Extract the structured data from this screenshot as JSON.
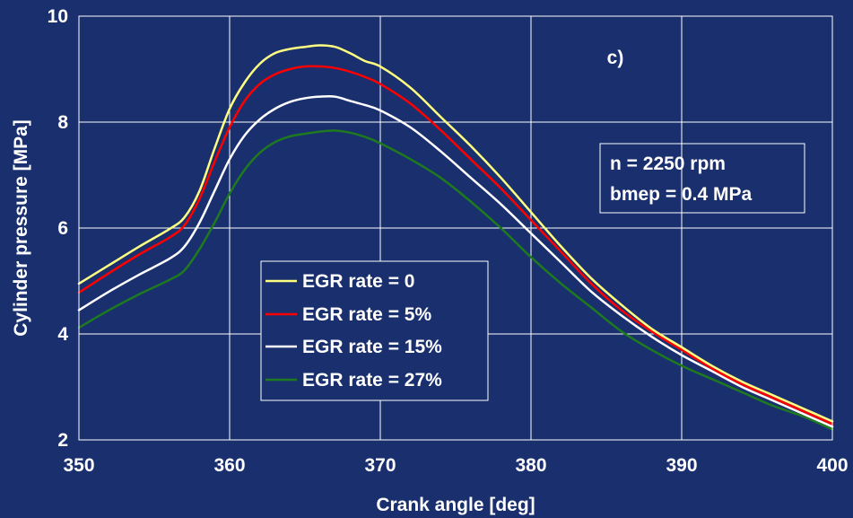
{
  "chart_data": {
    "type": "line",
    "title": "",
    "panel_label": "c)",
    "xlabel": "Crank angle [deg]",
    "ylabel": "Cylinder pressure [MPa]",
    "xlim": [
      350,
      400
    ],
    "ylim": [
      2,
      10
    ],
    "x_ticks": [
      350,
      360,
      370,
      380,
      390,
      400
    ],
    "y_ticks": [
      2,
      4,
      6,
      8,
      10
    ],
    "x_tick_labels": [
      "350",
      "360",
      "370",
      "380",
      "390",
      "400"
    ],
    "y_tick_labels": [
      "2",
      "4",
      "6",
      "8",
      "10"
    ],
    "grid": true,
    "legend_position": "center-left",
    "annotation_lines": [
      "n = 2250 rpm",
      "bmep = 0.4 MPa"
    ],
    "colors": {
      "background": "#1a2f6e",
      "grid": "#ffffff"
    },
    "series": [
      {
        "name": "EGR rate = 0",
        "color": "#ffff80",
        "x": [
          350,
          352,
          354,
          356,
          357,
          358,
          359,
          360,
          361,
          362,
          363,
          364,
          365,
          366,
          367,
          368,
          369,
          370,
          372,
          374,
          376,
          378,
          380,
          382,
          384,
          386,
          388,
          390,
          392,
          394,
          396,
          398,
          400
        ],
        "y": [
          4.95,
          5.3,
          5.65,
          5.98,
          6.2,
          6.7,
          7.5,
          8.25,
          8.75,
          9.1,
          9.3,
          9.38,
          9.42,
          9.45,
          9.42,
          9.3,
          9.15,
          9.05,
          8.65,
          8.1,
          7.55,
          6.95,
          6.3,
          5.65,
          5.05,
          4.55,
          4.1,
          3.75,
          3.4,
          3.1,
          2.85,
          2.6,
          2.35
        ]
      },
      {
        "name": "EGR rate = 5%",
        "color": "#ff0000",
        "x": [
          350,
          352,
          354,
          356,
          357,
          358,
          359,
          360,
          361,
          362,
          363,
          364,
          365,
          366,
          367,
          368,
          369,
          370,
          372,
          374,
          376,
          378,
          380,
          382,
          384,
          386,
          388,
          390,
          392,
          394,
          396,
          398,
          400
        ],
        "y": [
          4.78,
          5.15,
          5.5,
          5.82,
          6.05,
          6.55,
          7.25,
          7.9,
          8.4,
          8.72,
          8.9,
          9.0,
          9.05,
          9.05,
          9.02,
          8.95,
          8.85,
          8.72,
          8.35,
          7.85,
          7.3,
          6.75,
          6.15,
          5.55,
          4.95,
          4.45,
          4.05,
          3.7,
          3.35,
          3.05,
          2.8,
          2.55,
          2.3
        ]
      },
      {
        "name": "EGR rate = 15%",
        "color": "#ffffff",
        "x": [
          350,
          352,
          354,
          356,
          357,
          358,
          359,
          360,
          361,
          362,
          363,
          364,
          365,
          366,
          367,
          368,
          369,
          370,
          372,
          374,
          376,
          378,
          380,
          382,
          384,
          386,
          388,
          390,
          392,
          394,
          396,
          398,
          400
        ],
        "y": [
          4.45,
          4.8,
          5.12,
          5.42,
          5.65,
          6.1,
          6.7,
          7.3,
          7.75,
          8.05,
          8.25,
          8.38,
          8.45,
          8.48,
          8.48,
          8.4,
          8.32,
          8.22,
          7.9,
          7.45,
          6.95,
          6.45,
          5.9,
          5.35,
          4.8,
          4.35,
          3.95,
          3.6,
          3.3,
          3.0,
          2.75,
          2.5,
          2.25
        ]
      },
      {
        "name": "EGR rate = 27%",
        "color": "#1e7a1e",
        "x": [
          350,
          352,
          354,
          356,
          357,
          358,
          359,
          360,
          361,
          362,
          363,
          364,
          365,
          366,
          367,
          368,
          369,
          370,
          372,
          374,
          376,
          378,
          380,
          382,
          384,
          386,
          388,
          390,
          392,
          394,
          396,
          398,
          400
        ],
        "y": [
          4.12,
          4.45,
          4.75,
          5.02,
          5.2,
          5.6,
          6.1,
          6.65,
          7.1,
          7.42,
          7.62,
          7.73,
          7.78,
          7.82,
          7.84,
          7.8,
          7.72,
          7.6,
          7.3,
          6.95,
          6.5,
          6.0,
          5.45,
          4.95,
          4.5,
          4.05,
          3.7,
          3.4,
          3.15,
          2.9,
          2.65,
          2.45,
          2.2
        ]
      }
    ]
  }
}
